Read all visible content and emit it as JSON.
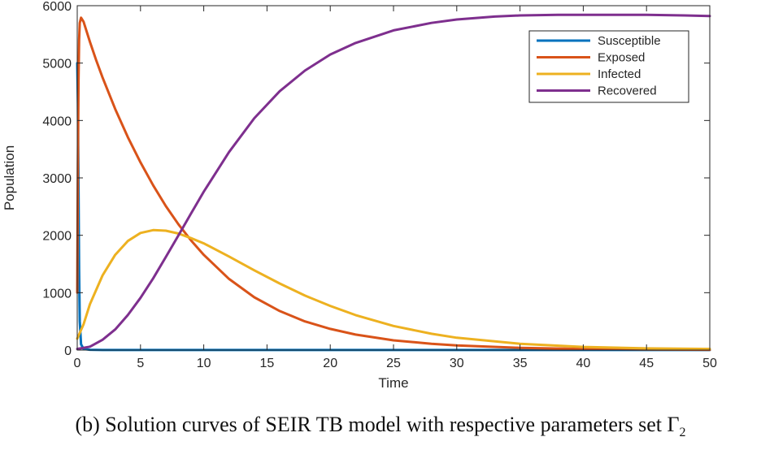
{
  "chart_data": {
    "type": "line",
    "xlabel": "Time",
    "ylabel": "Population",
    "xlim": [
      0,
      50
    ],
    "ylim": [
      0,
      6000
    ],
    "xticks": [
      0,
      5,
      10,
      15,
      20,
      25,
      30,
      35,
      40,
      45,
      50
    ],
    "yticks": [
      0,
      1000,
      2000,
      3000,
      4000,
      5000,
      6000
    ],
    "grid": false,
    "legend_position": "top-right",
    "series": [
      {
        "name": "Susceptible",
        "color": "#0072BD",
        "x": [
          0,
          0.05,
          0.1,
          0.15,
          0.2,
          0.3,
          0.5,
          1,
          2,
          5,
          10,
          20,
          30,
          40,
          50
        ],
        "y": [
          5000,
          4300,
          2800,
          1400,
          500,
          100,
          20,
          5,
          2,
          1,
          1,
          1,
          1,
          1,
          1
        ]
      },
      {
        "name": "Exposed",
        "color": "#D95319",
        "x": [
          0,
          0.05,
          0.1,
          0.15,
          0.2,
          0.3,
          0.5,
          1,
          1.5,
          2,
          3,
          4,
          5,
          6,
          7,
          8,
          9,
          10,
          12,
          14,
          16,
          18,
          20,
          22,
          25,
          28,
          30,
          35,
          40,
          45,
          50
        ],
        "y": [
          1000,
          3200,
          4700,
          5400,
          5700,
          5790,
          5720,
          5370,
          5050,
          4750,
          4200,
          3710,
          3270,
          2870,
          2510,
          2190,
          1910,
          1660,
          1240,
          920,
          680,
          500,
          370,
          270,
          170,
          110,
          80,
          40,
          20,
          10,
          5
        ]
      },
      {
        "name": "Infected",
        "color": "#EDB120",
        "x": [
          0,
          0.5,
          1,
          2,
          3,
          4,
          5,
          6,
          7,
          8,
          9,
          10,
          12,
          14,
          16,
          18,
          20,
          22,
          25,
          28,
          30,
          35,
          40,
          45,
          50
        ],
        "y": [
          200,
          450,
          800,
          1300,
          1660,
          1900,
          2040,
          2090,
          2080,
          2030,
          1950,
          1860,
          1630,
          1390,
          1160,
          950,
          770,
          610,
          420,
          285,
          215,
          110,
          55,
          30,
          20
        ]
      },
      {
        "name": "Recovered",
        "color": "#7E2F8E",
        "x": [
          0,
          1,
          2,
          3,
          4,
          5,
          6,
          7,
          8,
          9,
          10,
          12,
          14,
          16,
          18,
          20,
          22,
          25,
          28,
          30,
          33,
          35,
          38,
          40,
          43,
          45,
          48,
          50
        ],
        "y": [
          20,
          60,
          180,
          360,
          610,
          910,
          1250,
          1620,
          2000,
          2380,
          2760,
          3450,
          4040,
          4510,
          4870,
          5150,
          5350,
          5570,
          5700,
          5760,
          5810,
          5830,
          5840,
          5840,
          5840,
          5840,
          5830,
          5820
        ]
      }
    ]
  },
  "caption": {
    "text": "(b) Solution curves of SEIR TB model with respective parameters set Γ",
    "subscript": "2"
  }
}
